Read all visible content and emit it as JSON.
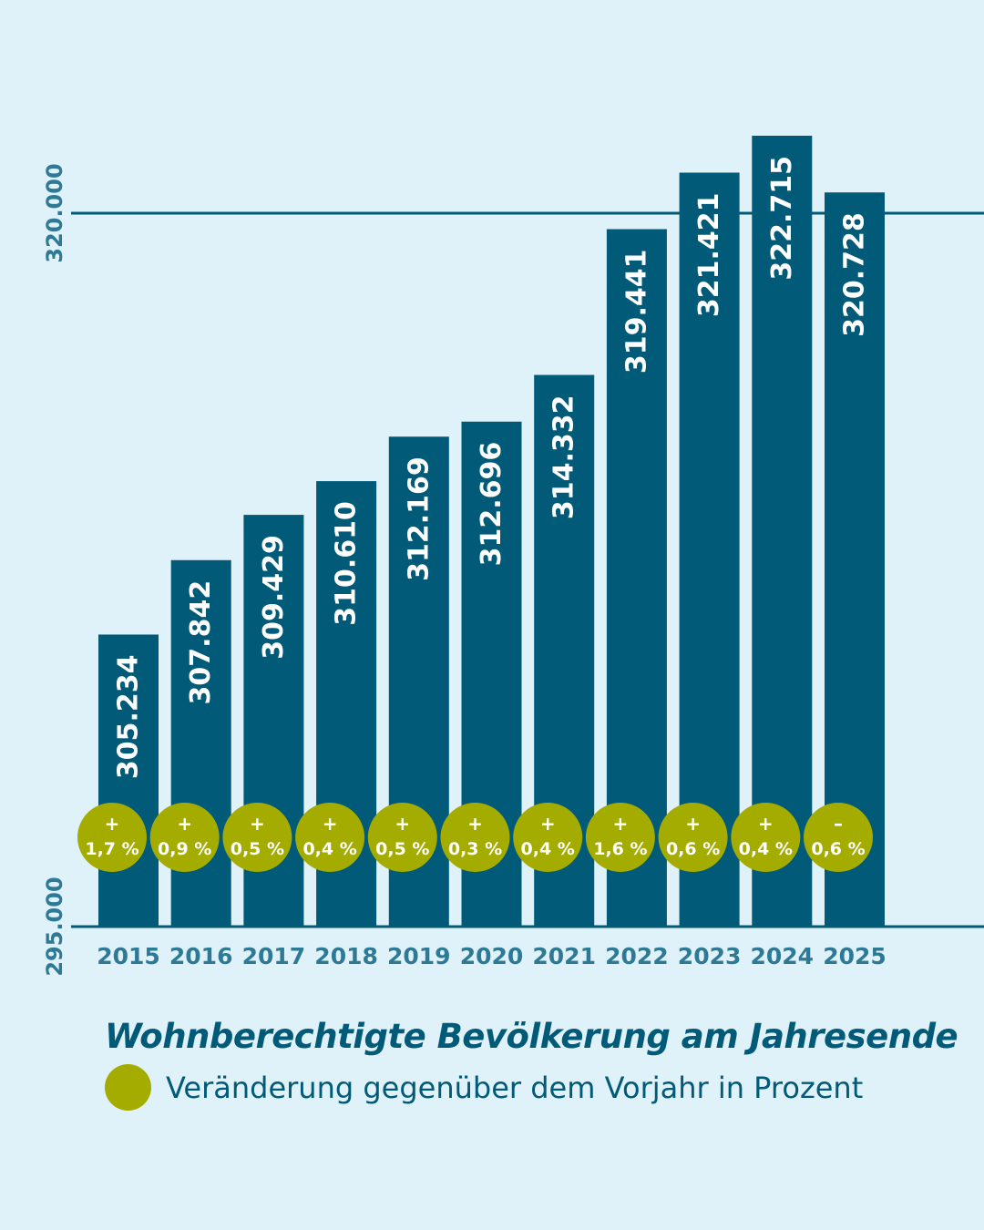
{
  "colors": {
    "background": "#dff1f9",
    "bar": "#005a78",
    "change_badge": "#a4ac00",
    "axis_text": "#2e7a96",
    "badge_text": "#ffffff"
  },
  "chart_data": {
    "type": "bar",
    "title": "Wohnberechtigte Bevölkerung am Jahresende",
    "legend": {
      "label": "Veränderung gegenüber dem Vorjahr in Prozent",
      "placement": "bottom"
    },
    "categories": [
      "2015",
      "2016",
      "2017",
      "2018",
      "2019",
      "2020",
      "2021",
      "2022",
      "2023",
      "2024",
      "2025"
    ],
    "values": [
      305234,
      307842,
      309429,
      310610,
      312169,
      312696,
      314332,
      319441,
      321421,
      322715,
      320728
    ],
    "value_labels": [
      "305.234",
      "307.842",
      "309.429",
      "310.610",
      "312.169",
      "312.696",
      "314.332",
      "319.441",
      "321.421",
      "322.715",
      "320.728"
    ],
    "change_signs": [
      "+",
      "+",
      "+",
      "+",
      "+",
      "+",
      "+",
      "+",
      "+",
      "+",
      "–"
    ],
    "change_labels": [
      "1,7 %",
      "0,9 %",
      "0,5 %",
      "0,4 %",
      "0,5 %",
      "0,3 %",
      "0,4 %",
      "1,6 %",
      "0,6 %",
      "0,4 %",
      "0,6 %"
    ],
    "ylim": [
      295000,
      320000
    ],
    "y_ticks": [
      295000,
      320000
    ],
    "y_tick_labels": [
      "295.000",
      "320.000"
    ],
    "grid": "gridline at 320.000 only",
    "xlabel": "",
    "ylabel": ""
  }
}
